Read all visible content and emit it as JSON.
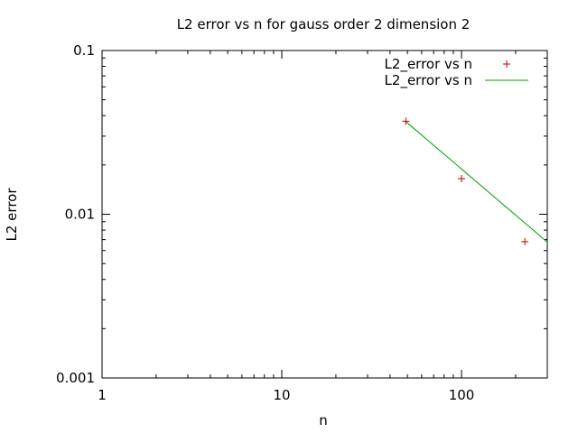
{
  "chart_data": {
    "type": "scatter",
    "title": "L2 error vs n for gauss order 2 dimension 2",
    "xlabel": "n",
    "ylabel": "L2 error",
    "xscale": "log",
    "yscale": "log",
    "xlim": [
      1,
      300
    ],
    "ylim": [
      0.001,
      0.1
    ],
    "x_tick_labels": [
      "1",
      "10",
      "100"
    ],
    "x_tick_values": [
      1,
      10,
      100
    ],
    "y_tick_labels": [
      "0.001",
      "0.01",
      "0.1"
    ],
    "y_tick_values": [
      0.001,
      0.01,
      0.1
    ],
    "legend_position": "top-right",
    "grid": false,
    "series": [
      {
        "name": "L2_error vs n",
        "style": "points",
        "marker": "+",
        "color": "#c00000",
        "x": [
          49,
          100,
          225
        ],
        "y": [
          0.037,
          0.0165,
          0.0068
        ]
      },
      {
        "name": "L2_error vs n",
        "style": "line",
        "color": "#00a000",
        "fit": {
          "coef": 1.4,
          "exponent": -0.935
        },
        "x_range": [
          49,
          300
        ]
      }
    ]
  }
}
